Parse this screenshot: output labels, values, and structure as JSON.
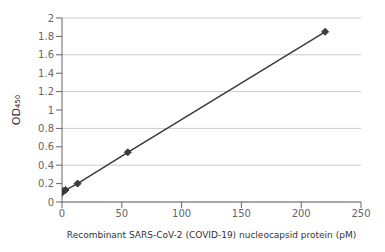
{
  "chart_data": {
    "type": "line",
    "x": [
      0,
      1,
      3,
      13,
      55,
      220
    ],
    "series": [
      {
        "values": [
          0.1,
          0.12,
          0.13,
          0.2,
          0.54,
          1.85
        ],
        "color": "#3a3a3a",
        "marker": "diamond"
      }
    ],
    "xlabel": "Recombinant SARS-CoV-2 (COVID-19) nucleocapsid protein (pM)",
    "ylabel": "OD₄₅₀",
    "xlim": [
      0,
      250
    ],
    "ylim": [
      0,
      2.0
    ],
    "xticks": [
      0,
      50,
      100,
      150,
      200,
      250
    ],
    "yticks": [
      0,
      0.2,
      0.4,
      0.6,
      0.8,
      1,
      1.2,
      1.4,
      1.6,
      1.8,
      2
    ],
    "grid": "y"
  }
}
